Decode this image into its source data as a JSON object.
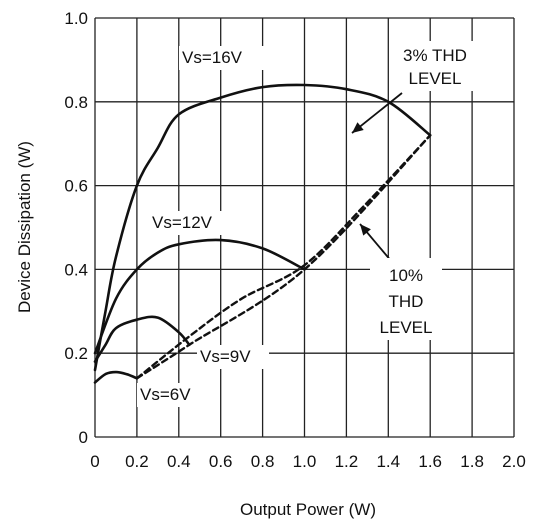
{
  "chart_data": {
    "type": "line",
    "title": "",
    "xlabel": "Output Power (W)",
    "ylabel": "Device Dissipation (W)",
    "xlim": [
      0,
      2.0
    ],
    "ylim": [
      0,
      1.0
    ],
    "grid": true,
    "x_ticks": [
      "0",
      "0.2",
      "0.4",
      "0.6",
      "0.8",
      "1.0",
      "1.2",
      "1.4",
      "1.6",
      "1.8",
      "2.0"
    ],
    "y_ticks": [
      "0",
      "0.2",
      "0.4",
      "0.6",
      "0.8",
      "1.0"
    ],
    "series": [
      {
        "name": "Vs=16V",
        "style": "solid",
        "points": [
          [
            0,
            0.16
          ],
          [
            0.05,
            0.3
          ],
          [
            0.1,
            0.43
          ],
          [
            0.2,
            0.6
          ],
          [
            0.3,
            0.69
          ],
          [
            0.4,
            0.77
          ],
          [
            0.6,
            0.81
          ],
          [
            0.8,
            0.835
          ],
          [
            1.0,
            0.84
          ],
          [
            1.2,
            0.83
          ],
          [
            1.4,
            0.8
          ],
          [
            1.6,
            0.72
          ]
        ]
      },
      {
        "name": "Vs=12V",
        "style": "solid",
        "points": [
          [
            0,
            0.2
          ],
          [
            0.1,
            0.33
          ],
          [
            0.2,
            0.4
          ],
          [
            0.3,
            0.44
          ],
          [
            0.4,
            0.46
          ],
          [
            0.6,
            0.47
          ],
          [
            0.8,
            0.45
          ],
          [
            1.0,
            0.4
          ]
        ]
      },
      {
        "name": "Vs=9V",
        "style": "solid",
        "points": [
          [
            0,
            0.18
          ],
          [
            0.05,
            0.22
          ],
          [
            0.1,
            0.26
          ],
          [
            0.2,
            0.28
          ],
          [
            0.3,
            0.285
          ],
          [
            0.4,
            0.25
          ],
          [
            0.45,
            0.22
          ]
        ]
      },
      {
        "name": "Vs=6V",
        "style": "solid",
        "points": [
          [
            0,
            0.13
          ],
          [
            0.05,
            0.15
          ],
          [
            0.1,
            0.155
          ],
          [
            0.15,
            0.15
          ],
          [
            0.2,
            0.14
          ]
        ]
      },
      {
        "name": "3% THD LEVEL",
        "style": "dashed",
        "points": [
          [
            0.2,
            0.14
          ],
          [
            0.45,
            0.22
          ],
          [
            1.0,
            0.4
          ],
          [
            1.6,
            0.72
          ]
        ]
      },
      {
        "name": "10% THD LEVEL",
        "style": "dashed",
        "points": [
          [
            0.2,
            0.14
          ],
          [
            0.45,
            0.24
          ],
          [
            0.7,
            0.33
          ],
          [
            1.0,
            0.41
          ],
          [
            1.3,
            0.56
          ],
          [
            1.6,
            0.72
          ]
        ]
      }
    ],
    "annotations": [
      {
        "text": "Vs=16V"
      },
      {
        "text": "Vs=12V"
      },
      {
        "text": "Vs=9V"
      },
      {
        "text": "Vs=6V"
      },
      {
        "text_lines": [
          "3% THD",
          "LEVEL"
        ]
      },
      {
        "text_lines": [
          "10%",
          "THD",
          "LEVEL"
        ]
      }
    ]
  }
}
